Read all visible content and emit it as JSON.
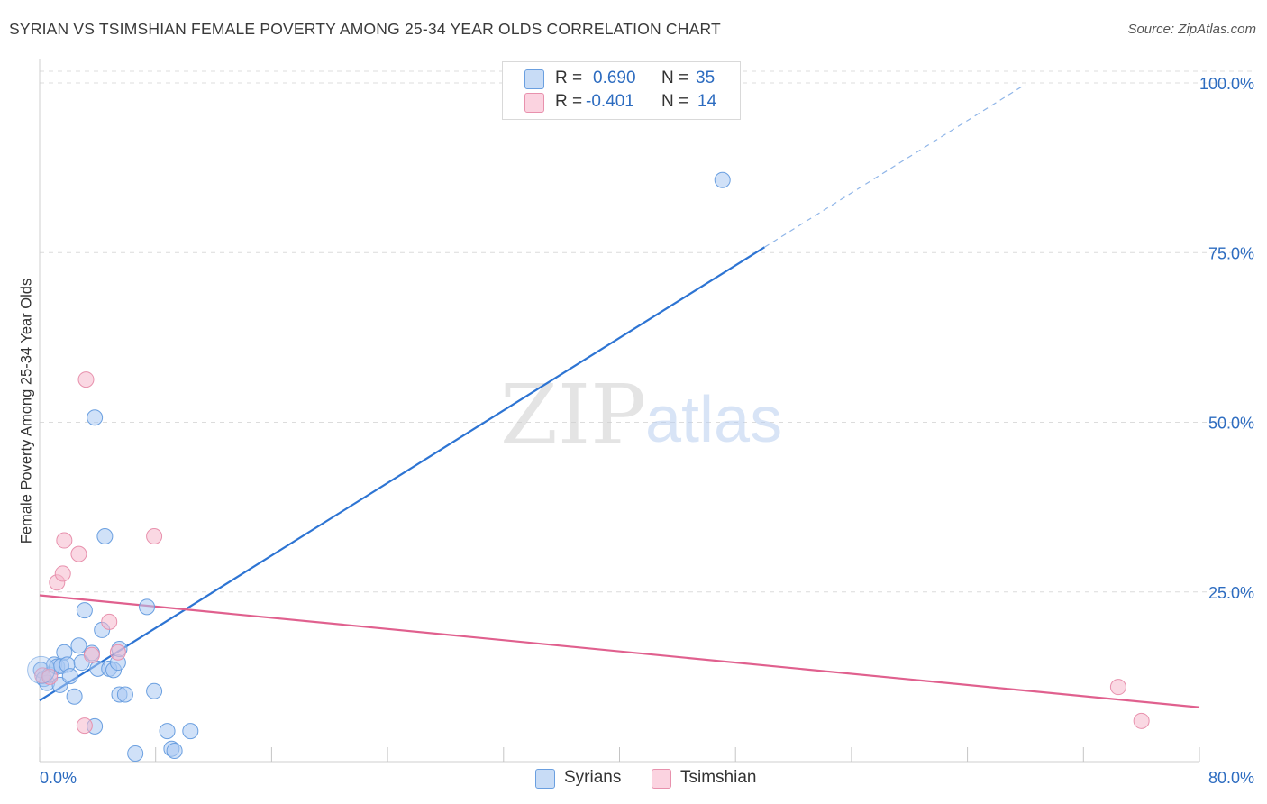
{
  "header": {
    "title": "SYRIAN VS TSIMSHIAN FEMALE POVERTY AMONG 25-34 YEAR OLDS CORRELATION CHART",
    "source": "Source: ZipAtlas.com"
  },
  "watermark": {
    "zip": "ZIP",
    "atlas": "atlas"
  },
  "legend_top": {
    "rows": [
      {
        "r_label": "R =",
        "r_value": "0.690",
        "n_label": "N =",
        "n_value": "35",
        "color": "#a9c9f2"
      },
      {
        "r_label": "R =",
        "r_value": "-0.401",
        "n_label": "N =",
        "n_value": "14",
        "color": "#f6b8cc"
      }
    ]
  },
  "legend_bottom": {
    "items": [
      {
        "label": "Syrians",
        "color": "#a9c9f2"
      },
      {
        "label": "Tsimshian",
        "color": "#f6b8cc"
      }
    ]
  },
  "colors": {
    "syrians_fill": "#a9c9f2",
    "syrians_stroke": "#6a9fe0",
    "syrians_line": "#2d74d3",
    "tsimshian_fill": "#f6b8cc",
    "tsimshian_stroke": "#e891ad",
    "tsimshian_line": "#e0608e",
    "axis_text": "#2d6cc0",
    "grid": "#dcdcdc"
  },
  "chart_data": {
    "type": "scatter",
    "title": "SYRIAN VS TSIMSHIAN FEMALE POVERTY AMONG 25-34 YEAR OLDS CORRELATION CHART",
    "xlabel": "",
    "ylabel": "Female Poverty Among 25-34 Year Olds",
    "xlim": [
      0,
      80
    ],
    "ylim": [
      0,
      102
    ],
    "x_tick_labels": [
      {
        "value": 0,
        "label": "0.0%"
      },
      {
        "value": 80,
        "label": "80.0%"
      }
    ],
    "y_tick_labels": [
      {
        "value": 25,
        "label": "25.0%"
      },
      {
        "value": 50,
        "label": "50.0%"
      },
      {
        "value": 75,
        "label": "75.0%"
      },
      {
        "value": 100,
        "label": "100.0%"
      }
    ],
    "grid": true,
    "legend": "top-center",
    "series": [
      {
        "name": "Syrians",
        "r": 0.69,
        "n": 35,
        "points": [
          [
            0.1,
            13.5
          ],
          [
            0.3,
            12.2
          ],
          [
            0.5,
            11.6
          ],
          [
            0.7,
            12.8
          ],
          [
            1.0,
            14.3
          ],
          [
            1.2,
            14.0
          ],
          [
            1.4,
            11.3
          ],
          [
            1.5,
            14.1
          ],
          [
            1.7,
            16.1
          ],
          [
            1.9,
            14.3
          ],
          [
            2.1,
            12.6
          ],
          [
            2.4,
            9.6
          ],
          [
            2.7,
            17.1
          ],
          [
            2.9,
            14.6
          ],
          [
            3.1,
            22.3
          ],
          [
            3.6,
            16.0
          ],
          [
            3.8,
            5.2
          ],
          [
            3.8,
            50.7
          ],
          [
            4.0,
            13.7
          ],
          [
            4.3,
            19.4
          ],
          [
            4.5,
            33.2
          ],
          [
            4.8,
            13.7
          ],
          [
            5.1,
            13.5
          ],
          [
            5.4,
            14.6
          ],
          [
            5.5,
            16.6
          ],
          [
            5.5,
            9.9
          ],
          [
            5.9,
            9.9
          ],
          [
            6.6,
            1.2
          ],
          [
            7.4,
            22.8
          ],
          [
            7.9,
            10.4
          ],
          [
            8.8,
            4.5
          ],
          [
            9.1,
            1.9
          ],
          [
            9.3,
            1.6
          ],
          [
            10.4,
            4.5
          ],
          [
            47.1,
            85.7
          ]
        ],
        "trend": {
          "x_start": 0,
          "y_start": 9.0,
          "x_end": 50,
          "y_end": 75.8,
          "dashed_to_x": 68,
          "dashed_to_y": 99.8
        }
      },
      {
        "name": "Tsimshian",
        "r": -0.401,
        "n": 14,
        "points": [
          [
            0.2,
            12.7
          ],
          [
            0.7,
            12.5
          ],
          [
            1.2,
            26.4
          ],
          [
            1.6,
            27.7
          ],
          [
            1.7,
            32.6
          ],
          [
            2.7,
            30.6
          ],
          [
            3.1,
            5.3
          ],
          [
            3.6,
            15.7
          ],
          [
            4.8,
            20.6
          ],
          [
            5.4,
            16.1
          ],
          [
            7.9,
            33.2
          ],
          [
            3.2,
            56.3
          ],
          [
            74.4,
            11.0
          ],
          [
            76.0,
            6.0
          ]
        ],
        "trend": {
          "x_start": 0,
          "y_start": 24.5,
          "x_end": 80,
          "y_end": 8.0
        }
      }
    ]
  }
}
